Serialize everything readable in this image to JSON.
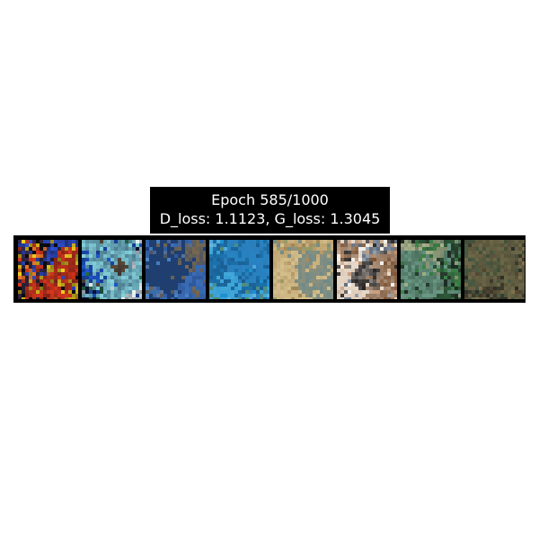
{
  "figure": {
    "title_line1": "Epoch 585/1000",
    "title_line2": "D_loss: 1.1123, G_loss: 1.3045"
  },
  "samples": [
    {
      "name": "generated-sample-1",
      "palette": [
        "#0b0b0f",
        "#d8361d",
        "#2f4fd0",
        "#f2d020",
        "#f07a2a",
        "#3a2b4a"
      ]
    },
    {
      "name": "generated-sample-2",
      "palette": [
        "#0a1230",
        "#1f5bd6",
        "#e9f4f2",
        "#84d3dd",
        "#2a6f45",
        "#5c4a35"
      ]
    },
    {
      "name": "generated-sample-3",
      "palette": [
        "#1e3d78",
        "#3c6eb8",
        "#5e7aa0",
        "#7a6a4e",
        "#20406e",
        "#4c88c8"
      ]
    },
    {
      "name": "generated-sample-4",
      "palette": [
        "#1f8fd0",
        "#2d7cb8",
        "#46a9d8",
        "#5a8c6c",
        "#1a5e92",
        "#6fb8de"
      ]
    },
    {
      "name": "generated-sample-5",
      "palette": [
        "#b79a68",
        "#d4c08d",
        "#8e9a6a",
        "#6f8a8a",
        "#c5ad7b",
        "#9e8656"
      ]
    },
    {
      "name": "generated-sample-6",
      "palette": [
        "#f3eee8",
        "#7a5233",
        "#272322",
        "#b88a66",
        "#5a6a7e",
        "#ddc9b5"
      ]
    },
    {
      "name": "generated-sample-7",
      "palette": [
        "#263b2d",
        "#3f8a4a",
        "#6b9a86",
        "#2e5c3a",
        "#a9b28c",
        "#1d2a24"
      ]
    },
    {
      "name": "generated-sample-8",
      "palette": [
        "#3d3a2c",
        "#6d6848",
        "#2b2e28",
        "#8a7a52",
        "#4a5e44",
        "#5a4a36"
      ]
    }
  ]
}
